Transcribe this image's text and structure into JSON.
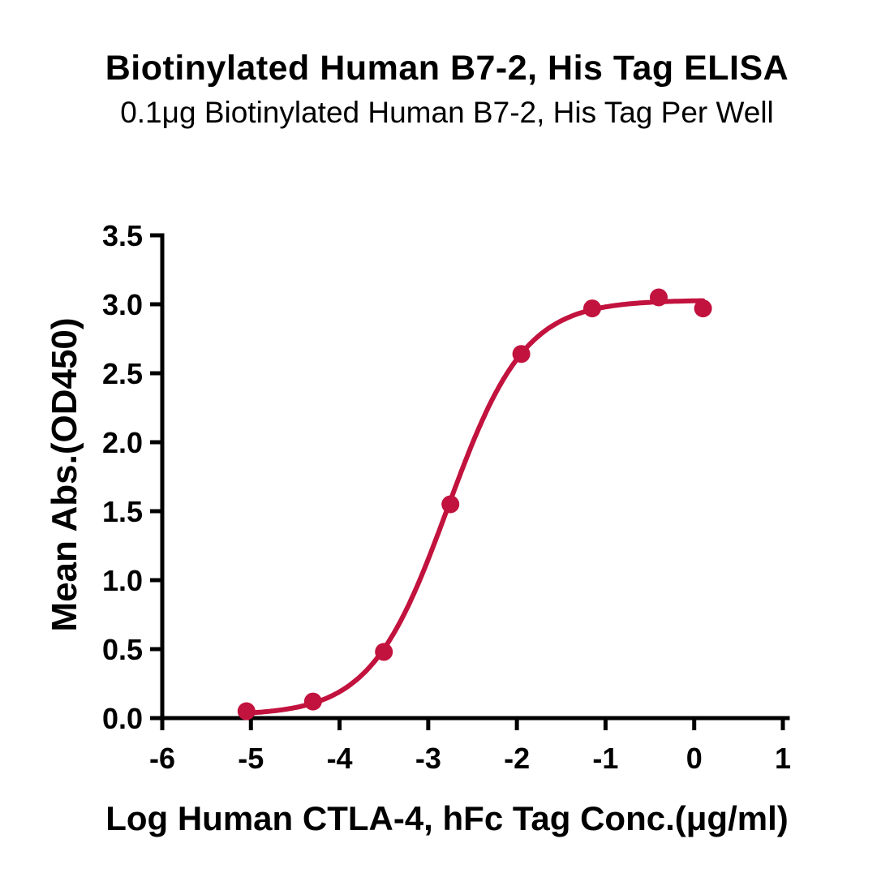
{
  "chart_data": {
    "type": "scatter",
    "title": "Biotinylated Human B7-2, His Tag ELISA",
    "subtitle": "0.1μg Biotinylated Human B7-2, His Tag Per Well",
    "xlabel": "Log Human CTLA-4, hFc Tag Conc.(μg/ml)",
    "ylabel": "Mean Abs.(OD450)",
    "xlim": [
      -6,
      1
    ],
    "ylim": [
      0,
      3.5
    ],
    "x_ticks": [
      -6,
      -5,
      -4,
      -3,
      -2,
      -1,
      0,
      1
    ],
    "y_ticks": [
      0.0,
      0.5,
      1.0,
      1.5,
      2.0,
      2.5,
      3.0,
      3.5
    ],
    "grid": false,
    "legend": null,
    "color": "#C2123E",
    "axis_color": "#000000",
    "points": [
      {
        "x": -5.05,
        "y": 0.05
      },
      {
        "x": -4.3,
        "y": 0.12
      },
      {
        "x": -3.5,
        "y": 0.48
      },
      {
        "x": -2.75,
        "y": 1.55
      },
      {
        "x": -1.95,
        "y": 2.64
      },
      {
        "x": -1.15,
        "y": 2.97
      },
      {
        "x": -0.4,
        "y": 3.05
      },
      {
        "x": 0.1,
        "y": 2.97
      }
    ],
    "fit": {
      "type": "4PL",
      "bottom": 0.02,
      "top": 3.03,
      "logEC50": -2.78,
      "hillslope": 1.0,
      "x_start": -5.05,
      "x_end": 0.1
    }
  }
}
